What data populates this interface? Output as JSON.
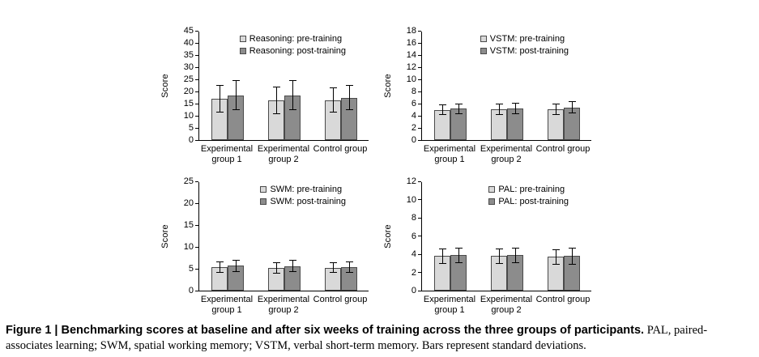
{
  "figure": {
    "caption_lead": "Figure 1 | Benchmarking scores at baseline and after six weeks of training across the three groups of participants.",
    "caption_rest": " PAL, paired-associates learning; SWM, spatial working memory; VSTM, verbal short-term memory. Bars represent standard deviations."
  },
  "colors": {
    "pre": "#d9d9d9",
    "post": "#8c8c8c",
    "axis": "#000000"
  },
  "chart_data": [
    {
      "type": "bar",
      "name": "Reasoning",
      "title": "",
      "xlabel": "",
      "ylabel": "Score",
      "ylim": [
        0,
        45
      ],
      "yticks": [
        0,
        5,
        10,
        15,
        20,
        25,
        30,
        35,
        40,
        45
      ],
      "grid": false,
      "legend_position": "top-right",
      "categories": [
        [
          "Experimental",
          "group 1"
        ],
        [
          "Experimental",
          "group 2"
        ],
        [
          "Control group"
        ]
      ],
      "series": [
        {
          "name": "Reasoning: pre-training",
          "color": "pre",
          "values": [
            17,
            16.5,
            16.5
          ],
          "errors": [
            5.5,
            5.5,
            5
          ]
        },
        {
          "name": "Reasoning: post-training",
          "color": "post",
          "values": [
            18.5,
            18.5,
            17.5
          ],
          "errors": [
            6,
            6,
            5
          ]
        }
      ]
    },
    {
      "type": "bar",
      "name": "VSTM",
      "title": "",
      "xlabel": "",
      "ylabel": "Score",
      "ylim": [
        0,
        18
      ],
      "yticks": [
        0,
        2,
        4,
        6,
        8,
        10,
        12,
        14,
        16,
        18
      ],
      "grid": false,
      "legend_position": "top-right",
      "categories": [
        [
          "Experimental",
          "group 1"
        ],
        [
          "Experimental",
          "group 2"
        ],
        [
          "Control group"
        ]
      ],
      "series": [
        {
          "name": "VSTM: pre-training",
          "color": "pre",
          "values": [
            5.0,
            5.1,
            5.1
          ],
          "errors": [
            0.8,
            0.9,
            0.9
          ]
        },
        {
          "name": "VSTM: post-training",
          "color": "post",
          "values": [
            5.2,
            5.2,
            5.4
          ],
          "errors": [
            0.8,
            0.9,
            0.9
          ]
        }
      ]
    },
    {
      "type": "bar",
      "name": "SWM",
      "title": "",
      "xlabel": "",
      "ylabel": "Score",
      "ylim": [
        0,
        25
      ],
      "yticks": [
        0,
        5,
        10,
        15,
        20,
        25
      ],
      "grid": false,
      "legend_position": "top-right",
      "categories": [
        [
          "Experimental",
          "group 1"
        ],
        [
          "Experimental",
          "group 2"
        ],
        [
          "Control group"
        ]
      ],
      "series": [
        {
          "name": "SWM: pre-training",
          "color": "pre",
          "values": [
            5.3,
            5.1,
            5.2
          ],
          "errors": [
            1.2,
            1.2,
            1.1
          ]
        },
        {
          "name": "SWM: post-training",
          "color": "post",
          "values": [
            5.7,
            5.6,
            5.4
          ],
          "errors": [
            1.3,
            1.3,
            1.2
          ]
        }
      ]
    },
    {
      "type": "bar",
      "name": "PAL",
      "title": "",
      "xlabel": "",
      "ylabel": "Score",
      "ylim": [
        0,
        12
      ],
      "yticks": [
        0,
        2,
        4,
        6,
        8,
        10,
        12
      ],
      "grid": false,
      "legend_position": "top-right",
      "categories": [
        [
          "Experimental",
          "group 1"
        ],
        [
          "Experimental",
          "group 2"
        ],
        [
          "Control group"
        ]
      ],
      "series": [
        {
          "name": "PAL: pre-training",
          "color": "pre",
          "values": [
            3.8,
            3.8,
            3.7
          ],
          "errors": [
            0.8,
            0.8,
            0.8
          ]
        },
        {
          "name": "PAL: post-training",
          "color": "post",
          "values": [
            3.9,
            3.9,
            3.8
          ],
          "errors": [
            0.8,
            0.8,
            0.9
          ]
        }
      ]
    }
  ]
}
